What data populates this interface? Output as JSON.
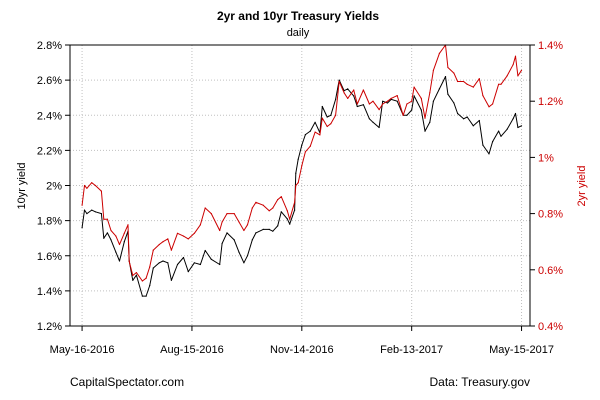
{
  "chart_data": {
    "type": "line",
    "title": "2yr and 10yr Treasury Yields",
    "subtitle": "daily",
    "ylabel_left": "10yr yield",
    "ylabel_right": "2yr yield",
    "x_ticks": [
      "2016-05-16",
      "2016-08-15",
      "2016-11-14",
      "2017-02-13",
      "2017-05-15"
    ],
    "x_tick_labels": [
      "May-16-2016",
      "Aug-15-2016",
      "Nov-14-2016",
      "Feb-13-2017",
      "May-15-2017"
    ],
    "xlim": [
      "2016-05-06",
      "2017-05-22"
    ],
    "ylim_left": [
      1.2,
      2.8
    ],
    "yticks_left": [
      1.2,
      1.4,
      1.6,
      1.8,
      2.0,
      2.2,
      2.4,
      2.6,
      2.8
    ],
    "ytick_labels_left": [
      "1.2%",
      "1.4%",
      "1.6%",
      "1.8%",
      "2%",
      "2.2%",
      "2.4%",
      "2.6%",
      "2.8%"
    ],
    "ylim_right": [
      0.4,
      1.4
    ],
    "yticks_right": [
      0.4,
      0.6,
      0.8,
      1.0,
      1.2,
      1.4
    ],
    "ytick_labels_right": [
      "0.4%",
      "0.6%",
      "0.8%",
      "1%",
      "1.2%",
      "1.4%"
    ],
    "grid": true,
    "series": [
      {
        "key": "ten_year",
        "axis": "left",
        "color": "#000000",
        "points": [
          [
            "2016-05-16",
            1.76
          ],
          [
            "2016-05-18",
            1.86
          ],
          [
            "2016-05-20",
            1.84
          ],
          [
            "2016-05-24",
            1.86
          ],
          [
            "2016-05-27",
            1.85
          ],
          [
            "2016-06-01",
            1.84
          ],
          [
            "2016-06-03",
            1.7
          ],
          [
            "2016-06-06",
            1.73
          ],
          [
            "2016-06-09",
            1.69
          ],
          [
            "2016-06-13",
            1.62
          ],
          [
            "2016-06-16",
            1.57
          ],
          [
            "2016-06-20",
            1.68
          ],
          [
            "2016-06-23",
            1.74
          ],
          [
            "2016-06-24",
            1.57
          ],
          [
            "2016-06-27",
            1.46
          ],
          [
            "2016-06-30",
            1.49
          ],
          [
            "2016-07-05",
            1.37
          ],
          [
            "2016-07-08",
            1.37
          ],
          [
            "2016-07-11",
            1.43
          ],
          [
            "2016-07-14",
            1.53
          ],
          [
            "2016-07-19",
            1.56
          ],
          [
            "2016-07-22",
            1.57
          ],
          [
            "2016-07-26",
            1.56
          ],
          [
            "2016-07-29",
            1.46
          ],
          [
            "2016-08-03",
            1.55
          ],
          [
            "2016-08-08",
            1.59
          ],
          [
            "2016-08-12",
            1.51
          ],
          [
            "2016-08-17",
            1.56
          ],
          [
            "2016-08-22",
            1.55
          ],
          [
            "2016-08-26",
            1.63
          ],
          [
            "2016-08-31",
            1.58
          ],
          [
            "2016-09-07",
            1.55
          ],
          [
            "2016-09-09",
            1.67
          ],
          [
            "2016-09-13",
            1.73
          ],
          [
            "2016-09-19",
            1.69
          ],
          [
            "2016-09-23",
            1.62
          ],
          [
            "2016-09-27",
            1.56
          ],
          [
            "2016-09-30",
            1.6
          ],
          [
            "2016-10-04",
            1.69
          ],
          [
            "2016-10-07",
            1.73
          ],
          [
            "2016-10-13",
            1.75
          ],
          [
            "2016-10-18",
            1.75
          ],
          [
            "2016-10-21",
            1.74
          ],
          [
            "2016-10-25",
            1.77
          ],
          [
            "2016-10-28",
            1.85
          ],
          [
            "2016-11-02",
            1.81
          ],
          [
            "2016-11-04",
            1.78
          ],
          [
            "2016-11-08",
            1.86
          ],
          [
            "2016-11-09",
            2.07
          ],
          [
            "2016-11-11",
            2.15
          ],
          [
            "2016-11-14",
            2.23
          ],
          [
            "2016-11-17",
            2.29
          ],
          [
            "2016-11-21",
            2.31
          ],
          [
            "2016-11-25",
            2.36
          ],
          [
            "2016-11-29",
            2.3
          ],
          [
            "2016-12-01",
            2.45
          ],
          [
            "2016-12-05",
            2.39
          ],
          [
            "2016-12-08",
            2.4
          ],
          [
            "2016-12-12",
            2.49
          ],
          [
            "2016-12-15",
            2.6
          ],
          [
            "2016-12-19",
            2.54
          ],
          [
            "2016-12-22",
            2.55
          ],
          [
            "2016-12-27",
            2.51
          ],
          [
            "2016-12-30",
            2.45
          ],
          [
            "2017-01-04",
            2.46
          ],
          [
            "2017-01-09",
            2.38
          ],
          [
            "2017-01-12",
            2.36
          ],
          [
            "2017-01-17",
            2.33
          ],
          [
            "2017-01-20",
            2.48
          ],
          [
            "2017-01-24",
            2.47
          ],
          [
            "2017-01-27",
            2.49
          ],
          [
            "2017-02-01",
            2.48
          ],
          [
            "2017-02-06",
            2.4
          ],
          [
            "2017-02-09",
            2.4
          ],
          [
            "2017-02-13",
            2.43
          ],
          [
            "2017-02-15",
            2.51
          ],
          [
            "2017-02-21",
            2.43
          ],
          [
            "2017-02-24",
            2.31
          ],
          [
            "2017-02-28",
            2.36
          ],
          [
            "2017-03-03",
            2.48
          ],
          [
            "2017-03-08",
            2.55
          ],
          [
            "2017-03-13",
            2.62
          ],
          [
            "2017-03-15",
            2.52
          ],
          [
            "2017-03-20",
            2.47
          ],
          [
            "2017-03-23",
            2.41
          ],
          [
            "2017-03-28",
            2.38
          ],
          [
            "2017-03-31",
            2.39
          ],
          [
            "2017-04-05",
            2.34
          ],
          [
            "2017-04-10",
            2.37
          ],
          [
            "2017-04-13",
            2.23
          ],
          [
            "2017-04-18",
            2.18
          ],
          [
            "2017-04-21",
            2.25
          ],
          [
            "2017-04-26",
            2.31
          ],
          [
            "2017-04-28",
            2.28
          ],
          [
            "2017-05-03",
            2.32
          ],
          [
            "2017-05-08",
            2.38
          ],
          [
            "2017-05-10",
            2.41
          ],
          [
            "2017-05-12",
            2.33
          ],
          [
            "2017-05-15",
            2.34
          ]
        ]
      },
      {
        "key": "two_year",
        "axis": "right",
        "color": "#cc0000",
        "points": [
          [
            "2016-05-16",
            0.83
          ],
          [
            "2016-05-18",
            0.9
          ],
          [
            "2016-05-20",
            0.89
          ],
          [
            "2016-05-24",
            0.91
          ],
          [
            "2016-05-27",
            0.9
          ],
          [
            "2016-06-01",
            0.88
          ],
          [
            "2016-06-03",
            0.78
          ],
          [
            "2016-06-06",
            0.78
          ],
          [
            "2016-06-09",
            0.74
          ],
          [
            "2016-06-13",
            0.72
          ],
          [
            "2016-06-16",
            0.69
          ],
          [
            "2016-06-20",
            0.73
          ],
          [
            "2016-06-23",
            0.76
          ],
          [
            "2016-06-24",
            0.63
          ],
          [
            "2016-06-27",
            0.58
          ],
          [
            "2016-06-30",
            0.59
          ],
          [
            "2016-07-05",
            0.56
          ],
          [
            "2016-07-08",
            0.57
          ],
          [
            "2016-07-11",
            0.61
          ],
          [
            "2016-07-14",
            0.67
          ],
          [
            "2016-07-19",
            0.69
          ],
          [
            "2016-07-22",
            0.7
          ],
          [
            "2016-07-26",
            0.71
          ],
          [
            "2016-07-29",
            0.67
          ],
          [
            "2016-08-03",
            0.73
          ],
          [
            "2016-08-08",
            0.72
          ],
          [
            "2016-08-12",
            0.71
          ],
          [
            "2016-08-17",
            0.73
          ],
          [
            "2016-08-22",
            0.76
          ],
          [
            "2016-08-26",
            0.82
          ],
          [
            "2016-08-31",
            0.8
          ],
          [
            "2016-09-07",
            0.74
          ],
          [
            "2016-09-09",
            0.77
          ],
          [
            "2016-09-13",
            0.8
          ],
          [
            "2016-09-19",
            0.8
          ],
          [
            "2016-09-23",
            0.77
          ],
          [
            "2016-09-27",
            0.74
          ],
          [
            "2016-09-30",
            0.76
          ],
          [
            "2016-10-04",
            0.82
          ],
          [
            "2016-10-07",
            0.84
          ],
          [
            "2016-10-13",
            0.83
          ],
          [
            "2016-10-18",
            0.81
          ],
          [
            "2016-10-21",
            0.82
          ],
          [
            "2016-10-25",
            0.85
          ],
          [
            "2016-10-28",
            0.86
          ],
          [
            "2016-11-02",
            0.81
          ],
          [
            "2016-11-04",
            0.78
          ],
          [
            "2016-11-08",
            0.84
          ],
          [
            "2016-11-09",
            0.9
          ],
          [
            "2016-11-11",
            0.91
          ],
          [
            "2016-11-14",
            0.97
          ],
          [
            "2016-11-17",
            1.02
          ],
          [
            "2016-11-21",
            1.04
          ],
          [
            "2016-11-25",
            1.09
          ],
          [
            "2016-11-29",
            1.08
          ],
          [
            "2016-12-01",
            1.14
          ],
          [
            "2016-12-05",
            1.11
          ],
          [
            "2016-12-08",
            1.12
          ],
          [
            "2016-12-12",
            1.15
          ],
          [
            "2016-12-15",
            1.27
          ],
          [
            "2016-12-19",
            1.23
          ],
          [
            "2016-12-22",
            1.21
          ],
          [
            "2016-12-27",
            1.24
          ],
          [
            "2016-12-30",
            1.19
          ],
          [
            "2017-01-04",
            1.24
          ],
          [
            "2017-01-09",
            1.19
          ],
          [
            "2017-01-12",
            1.2
          ],
          [
            "2017-01-17",
            1.17
          ],
          [
            "2017-01-20",
            1.19
          ],
          [
            "2017-01-24",
            1.2
          ],
          [
            "2017-01-27",
            1.21
          ],
          [
            "2017-02-01",
            1.22
          ],
          [
            "2017-02-06",
            1.15
          ],
          [
            "2017-02-09",
            1.19
          ],
          [
            "2017-02-13",
            1.2
          ],
          [
            "2017-02-15",
            1.25
          ],
          [
            "2017-02-21",
            1.21
          ],
          [
            "2017-02-24",
            1.14
          ],
          [
            "2017-02-28",
            1.23
          ],
          [
            "2017-03-03",
            1.31
          ],
          [
            "2017-03-08",
            1.37
          ],
          [
            "2017-03-13",
            1.4
          ],
          [
            "2017-03-15",
            1.32
          ],
          [
            "2017-03-20",
            1.3
          ],
          [
            "2017-03-23",
            1.27
          ],
          [
            "2017-03-28",
            1.27
          ],
          [
            "2017-03-31",
            1.26
          ],
          [
            "2017-04-05",
            1.25
          ],
          [
            "2017-04-10",
            1.28
          ],
          [
            "2017-04-13",
            1.22
          ],
          [
            "2017-04-18",
            1.18
          ],
          [
            "2017-04-21",
            1.19
          ],
          [
            "2017-04-26",
            1.26
          ],
          [
            "2017-04-28",
            1.26
          ],
          [
            "2017-05-03",
            1.29
          ],
          [
            "2017-05-08",
            1.33
          ],
          [
            "2017-05-10",
            1.36
          ],
          [
            "2017-05-12",
            1.29
          ],
          [
            "2017-05-15",
            1.31
          ]
        ]
      }
    ]
  },
  "footer": {
    "left": "CapitalSpectator.com",
    "right": "Data: Treasury.gov"
  }
}
